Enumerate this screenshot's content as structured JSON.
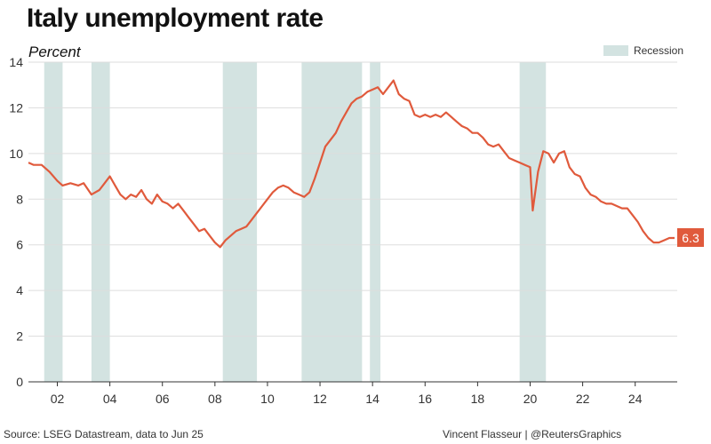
{
  "title": "Italy unemployment rate",
  "subtitle": "Percent",
  "legend_label": "Recession",
  "source": "Source: LSEG Datastream, data to Jun 25",
  "credit": "Vincent Flasseur | @ReutersGraphics",
  "colors": {
    "line": "#e05a3c",
    "recession": "#d3e3e1",
    "grid": "#dddddd",
    "axis": "#333333"
  },
  "chart_data": {
    "type": "line",
    "title": "Italy unemployment rate",
    "ylabel": "Percent",
    "xlim": [
      2000.9,
      2025.6
    ],
    "ylim": [
      0,
      14
    ],
    "grid": true,
    "legend": "top-right",
    "yticks": [
      0,
      2,
      4,
      6,
      8,
      10,
      12,
      14
    ],
    "xticks": [
      {
        "value": 2002,
        "label": "02"
      },
      {
        "value": 2004,
        "label": "04"
      },
      {
        "value": 2006,
        "label": "06"
      },
      {
        "value": 2008,
        "label": "08"
      },
      {
        "value": 2010,
        "label": "10"
      },
      {
        "value": 2012,
        "label": "12"
      },
      {
        "value": 2014,
        "label": "14"
      },
      {
        "value": 2016,
        "label": "16"
      },
      {
        "value": 2018,
        "label": "18"
      },
      {
        "value": 2020,
        "label": "20"
      },
      {
        "value": 2022,
        "label": "22"
      },
      {
        "value": 2024,
        "label": "24"
      }
    ],
    "recessions": [
      [
        2001.5,
        2002.2
      ],
      [
        2003.3,
        2004.0
      ],
      [
        2008.3,
        2009.6
      ],
      [
        2011.3,
        2013.6
      ],
      [
        2013.9,
        2014.3
      ],
      [
        2019.6,
        2020.6
      ]
    ],
    "last_value_label": "6.3",
    "series": [
      {
        "values": [
          [
            2000.9,
            9.6
          ],
          [
            2001.1,
            9.5
          ],
          [
            2001.4,
            9.5
          ],
          [
            2001.7,
            9.2
          ],
          [
            2002.0,
            8.8
          ],
          [
            2002.2,
            8.6
          ],
          [
            2002.5,
            8.7
          ],
          [
            2002.8,
            8.6
          ],
          [
            2003.0,
            8.7
          ],
          [
            2003.3,
            8.2
          ],
          [
            2003.6,
            8.4
          ],
          [
            2003.8,
            8.7
          ],
          [
            2004.0,
            9.0
          ],
          [
            2004.2,
            8.6
          ],
          [
            2004.4,
            8.2
          ],
          [
            2004.6,
            8.0
          ],
          [
            2004.8,
            8.2
          ],
          [
            2005.0,
            8.1
          ],
          [
            2005.2,
            8.4
          ],
          [
            2005.4,
            8.0
          ],
          [
            2005.6,
            7.8
          ],
          [
            2005.8,
            8.2
          ],
          [
            2006.0,
            7.9
          ],
          [
            2006.2,
            7.8
          ],
          [
            2006.4,
            7.6
          ],
          [
            2006.6,
            7.8
          ],
          [
            2006.8,
            7.5
          ],
          [
            2007.0,
            7.2
          ],
          [
            2007.2,
            6.9
          ],
          [
            2007.4,
            6.6
          ],
          [
            2007.6,
            6.7
          ],
          [
            2007.8,
            6.4
          ],
          [
            2008.0,
            6.1
          ],
          [
            2008.2,
            5.9
          ],
          [
            2008.4,
            6.2
          ],
          [
            2008.6,
            6.4
          ],
          [
            2008.8,
            6.6
          ],
          [
            2009.0,
            6.7
          ],
          [
            2009.2,
            6.8
          ],
          [
            2009.4,
            7.1
          ],
          [
            2009.6,
            7.4
          ],
          [
            2009.8,
            7.7
          ],
          [
            2010.0,
            8.0
          ],
          [
            2010.2,
            8.3
          ],
          [
            2010.4,
            8.5
          ],
          [
            2010.6,
            8.6
          ],
          [
            2010.8,
            8.5
          ],
          [
            2011.0,
            8.3
          ],
          [
            2011.2,
            8.2
          ],
          [
            2011.4,
            8.1
          ],
          [
            2011.6,
            8.3
          ],
          [
            2011.8,
            8.9
          ],
          [
            2012.0,
            9.6
          ],
          [
            2012.2,
            10.3
          ],
          [
            2012.4,
            10.6
          ],
          [
            2012.6,
            10.9
          ],
          [
            2012.8,
            11.4
          ],
          [
            2013.0,
            11.8
          ],
          [
            2013.2,
            12.2
          ],
          [
            2013.4,
            12.4
          ],
          [
            2013.6,
            12.5
          ],
          [
            2013.8,
            12.7
          ],
          [
            2014.0,
            12.8
          ],
          [
            2014.2,
            12.9
          ],
          [
            2014.4,
            12.6
          ],
          [
            2014.6,
            12.9
          ],
          [
            2014.8,
            13.2
          ],
          [
            2015.0,
            12.6
          ],
          [
            2015.2,
            12.4
          ],
          [
            2015.4,
            12.3
          ],
          [
            2015.6,
            11.7
          ],
          [
            2015.8,
            11.6
          ],
          [
            2016.0,
            11.7
          ],
          [
            2016.2,
            11.6
          ],
          [
            2016.4,
            11.7
          ],
          [
            2016.6,
            11.6
          ],
          [
            2016.8,
            11.8
          ],
          [
            2017.0,
            11.6
          ],
          [
            2017.2,
            11.4
          ],
          [
            2017.4,
            11.2
          ],
          [
            2017.6,
            11.1
          ],
          [
            2017.8,
            10.9
          ],
          [
            2018.0,
            10.9
          ],
          [
            2018.2,
            10.7
          ],
          [
            2018.4,
            10.4
          ],
          [
            2018.6,
            10.3
          ],
          [
            2018.8,
            10.4
          ],
          [
            2019.0,
            10.1
          ],
          [
            2019.2,
            9.8
          ],
          [
            2019.4,
            9.7
          ],
          [
            2019.6,
            9.6
          ],
          [
            2019.8,
            9.5
          ],
          [
            2020.0,
            9.4
          ],
          [
            2020.1,
            7.5
          ],
          [
            2020.3,
            9.2
          ],
          [
            2020.5,
            10.1
          ],
          [
            2020.7,
            10.0
          ],
          [
            2020.9,
            9.6
          ],
          [
            2021.1,
            10.0
          ],
          [
            2021.3,
            10.1
          ],
          [
            2021.5,
            9.4
          ],
          [
            2021.7,
            9.1
          ],
          [
            2021.9,
            9.0
          ],
          [
            2022.1,
            8.5
          ],
          [
            2022.3,
            8.2
          ],
          [
            2022.5,
            8.1
          ],
          [
            2022.7,
            7.9
          ],
          [
            2022.9,
            7.8
          ],
          [
            2023.1,
            7.8
          ],
          [
            2023.3,
            7.7
          ],
          [
            2023.5,
            7.6
          ],
          [
            2023.7,
            7.6
          ],
          [
            2023.9,
            7.3
          ],
          [
            2024.1,
            7.0
          ],
          [
            2024.3,
            6.6
          ],
          [
            2024.5,
            6.3
          ],
          [
            2024.7,
            6.1
          ],
          [
            2024.9,
            6.1
          ],
          [
            2025.1,
            6.2
          ],
          [
            2025.3,
            6.3
          ],
          [
            2025.5,
            6.3
          ]
        ]
      }
    ]
  }
}
